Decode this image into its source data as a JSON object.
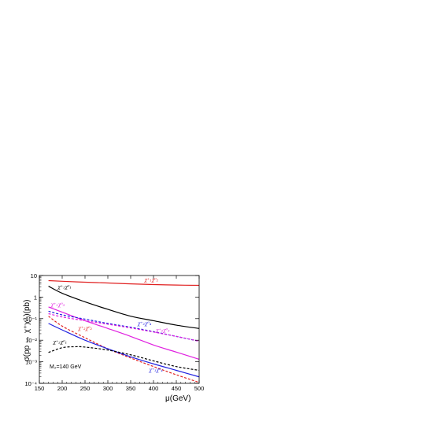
{
  "chart_data": {
    "type": "line",
    "xlabel": "μ(GeV)",
    "ylabel": "σ(pp → χ⁺χ⁰ⱼ)(pb)",
    "xlim": [
      150,
      500
    ],
    "ylim_log10": [
      -4,
      1
    ],
    "y_scale": "log",
    "x_ticks": [
      150,
      200,
      250,
      300,
      350,
      400,
      450,
      500
    ],
    "y_ticks": [
      {
        "value": 10,
        "label": "10"
      },
      {
        "value": 1,
        "label": "1"
      },
      {
        "value": 0.1,
        "label": "10⁻¹"
      },
      {
        "value": 0.01,
        "label": "10⁻²"
      },
      {
        "value": 0.001,
        "label": "10⁻³"
      },
      {
        "value": 0.0001,
        "label": "10⁻⁴"
      }
    ],
    "annotation": "M₂=140 GeV",
    "series": [
      {
        "name": "χ⁺₁χ⁰₂",
        "color": "#e02020",
        "style": "solid",
        "label_pos": [
          380,
          5.4
        ],
        "points": [
          [
            170,
            5.8
          ],
          [
            200,
            5.4
          ],
          [
            250,
            4.9
          ],
          [
            300,
            4.5
          ],
          [
            350,
            4.1
          ],
          [
            400,
            3.8
          ],
          [
            450,
            3.6
          ],
          [
            500,
            3.5
          ]
        ]
      },
      {
        "name": "χ⁺₁χ⁰₁",
        "color": "#000000",
        "style": "solid",
        "label_pos": [
          190,
          2.5
        ],
        "points": [
          [
            170,
            3.2
          ],
          [
            200,
            1.5
          ],
          [
            250,
            0.6
          ],
          [
            300,
            0.27
          ],
          [
            350,
            0.13
          ],
          [
            400,
            0.08
          ],
          [
            450,
            0.05
          ],
          [
            500,
            0.035
          ]
        ]
      },
      {
        "name": "χ⁺₁χ⁰₃",
        "color": "#e020e0",
        "style": "solid",
        "label_pos": [
          175,
          0.38
        ],
        "points": [
          [
            170,
            0.35
          ],
          [
            200,
            0.2
          ],
          [
            250,
            0.08
          ],
          [
            300,
            0.035
          ],
          [
            350,
            0.015
          ],
          [
            400,
            0.006
          ],
          [
            450,
            0.0028
          ],
          [
            500,
            0.0013
          ]
        ]
      },
      {
        "name": "χ⁺₂χ⁰₄",
        "color": "#2020e0",
        "style": "dashed",
        "label_pos": [
          365,
          0.05
        ],
        "points": [
          [
            170,
            0.22
          ],
          [
            200,
            0.15
          ],
          [
            250,
            0.095
          ],
          [
            300,
            0.06
          ],
          [
            350,
            0.04
          ],
          [
            400,
            0.025
          ],
          [
            450,
            0.015
          ],
          [
            500,
            0.009
          ]
        ]
      },
      {
        "name": "χ⁺₂χ⁰₃",
        "color": "#e020e0",
        "style": "dashed",
        "label_pos": [
          405,
          0.025
        ],
        "points": [
          [
            170,
            0.17
          ],
          [
            200,
            0.12
          ],
          [
            250,
            0.08
          ],
          [
            300,
            0.055
          ],
          [
            350,
            0.037
          ],
          [
            400,
            0.024
          ],
          [
            450,
            0.015
          ],
          [
            500,
            0.009
          ]
        ]
      },
      {
        "name": "χ⁺₂χ⁰₂",
        "color": "#e02020",
        "style": "dashed",
        "label_pos": [
          235,
          0.03
        ],
        "points": [
          [
            170,
            0.13
          ],
          [
            200,
            0.045
          ],
          [
            250,
            0.013
          ],
          [
            300,
            0.004
          ],
          [
            350,
            0.0015
          ],
          [
            400,
            0.0006
          ],
          [
            450,
            0.00025
          ],
          [
            500,
            0.00011
          ]
        ]
      },
      {
        "name": "χ⁺₁χ⁰₄",
        "color": "#2020e0",
        "style": "solid",
        "label_pos": [
          390,
          0.00035
        ],
        "points": [
          [
            170,
            0.06
          ],
          [
            200,
            0.03
          ],
          [
            250,
            0.01
          ],
          [
            300,
            0.004
          ],
          [
            350,
            0.0017
          ],
          [
            400,
            0.0008
          ],
          [
            450,
            0.0004
          ],
          [
            500,
            0.0002
          ]
        ]
      },
      {
        "name": "χ⁺₂χ⁰₁",
        "color": "#000000",
        "style": "dashed",
        "label_pos": [
          180,
          0.007
        ],
        "points": [
          [
            170,
            0.0027
          ],
          [
            200,
            0.0045
          ],
          [
            230,
            0.005
          ],
          [
            250,
            0.0048
          ],
          [
            300,
            0.0035
          ],
          [
            350,
            0.0021
          ],
          [
            400,
            0.0011
          ],
          [
            450,
            0.0006
          ],
          [
            500,
            0.0004
          ]
        ]
      }
    ]
  }
}
